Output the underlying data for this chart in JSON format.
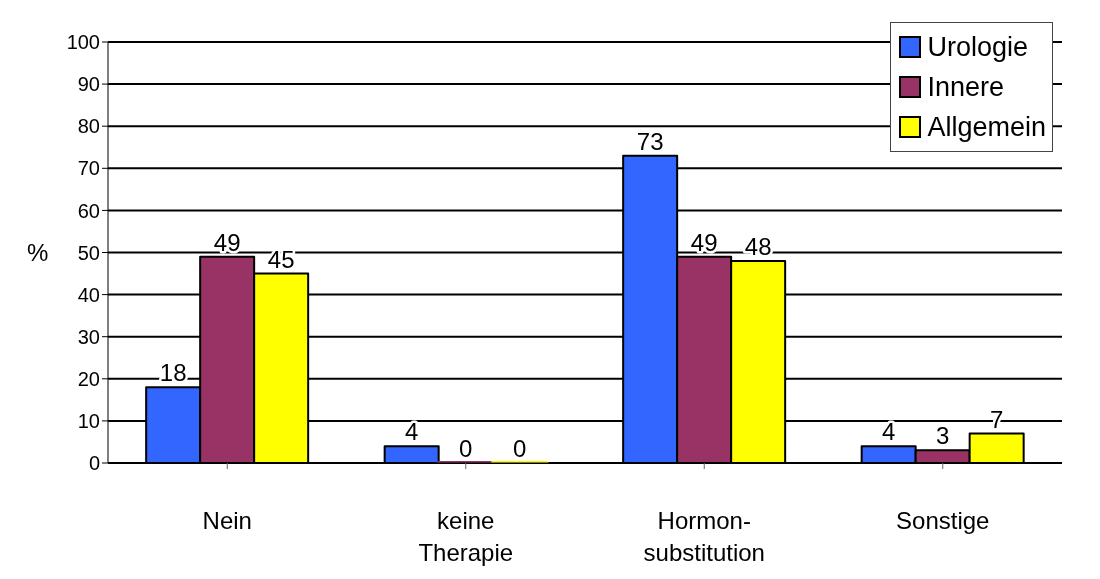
{
  "chart_data": {
    "type": "bar",
    "ylabel": "%",
    "categories": [
      "Nein",
      "keine Therapie",
      "Hormon-substitution",
      "Sonstige"
    ],
    "series": [
      {
        "name": "Urologie",
        "color": "#3366ff",
        "values": [
          18,
          4,
          73,
          4
        ]
      },
      {
        "name": "Innere",
        "color": "#993366",
        "values": [
          49,
          0,
          49,
          3
        ]
      },
      {
        "name": "Allgemein",
        "color": "#ffff00",
        "values": [
          45,
          0,
          48,
          7
        ]
      }
    ],
    "ylim": [
      0,
      100
    ],
    "yticks": [
      0,
      10,
      20,
      30,
      40,
      50,
      60,
      70,
      80,
      90,
      100
    ],
    "grid": "y",
    "legend": "top right",
    "data_labels": true
  }
}
